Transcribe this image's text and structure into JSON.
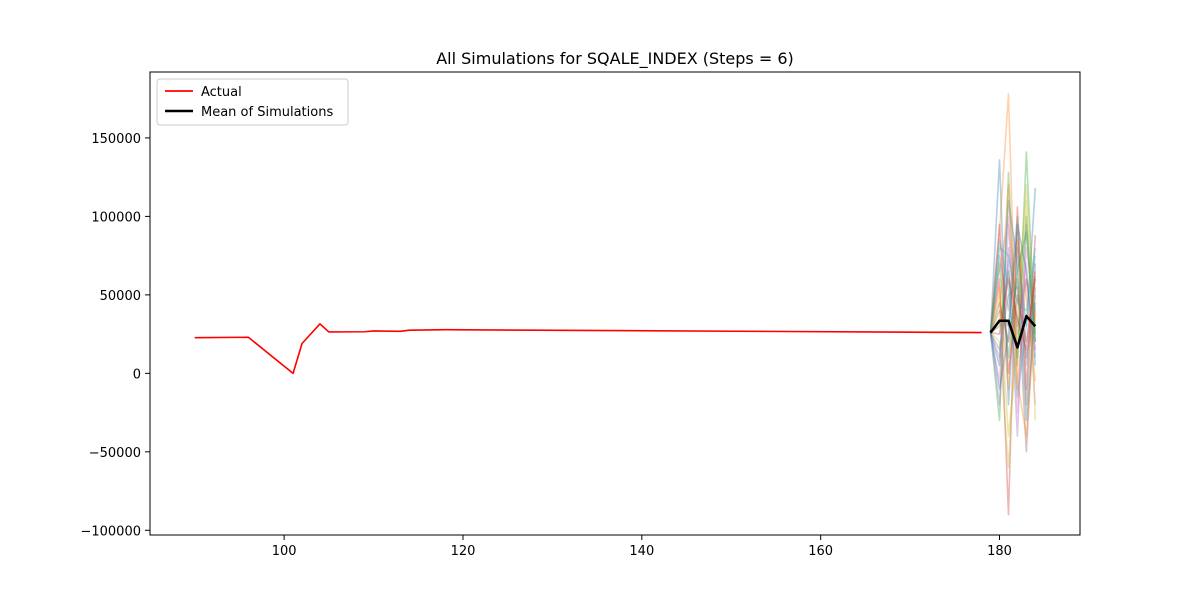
{
  "chart_data": {
    "type": "line",
    "title": "All Simulations for SQALE_INDEX (Steps = 6)",
    "xlabel": "",
    "ylabel": "",
    "xlim": [
      85,
      189
    ],
    "ylim": [
      -103000,
      192000
    ],
    "xticks": [
      100,
      120,
      140,
      160,
      180
    ],
    "yticks": [
      -100000,
      -50000,
      0,
      50000,
      100000,
      150000
    ],
    "xtick_labels": [
      "100",
      "120",
      "140",
      "160",
      "180"
    ],
    "ytick_labels": [
      "−100000",
      "−50000",
      "0",
      "50000",
      "100000",
      "150000"
    ],
    "grid": false,
    "legend_placement": "top-left",
    "legend": [
      {
        "label": "Actual",
        "color": "#ff0000"
      },
      {
        "label": "Mean of Simulations",
        "color": "#000000"
      }
    ],
    "actual": {
      "name": "Actual",
      "color": "#ff0000",
      "x": [
        90,
        96,
        101,
        102,
        104,
        105,
        109,
        110,
        113,
        114,
        118,
        178
      ],
      "y": [
        22700,
        23000,
        0,
        19000,
        31500,
        26400,
        26500,
        27000,
        26800,
        27500,
        27800,
        26000
      ]
    },
    "mean_of_simulations": {
      "name": "Mean of Simulations",
      "color": "#000000",
      "x": [
        179,
        180,
        181,
        182,
        183,
        184
      ],
      "y": [
        26000,
        33500,
        33500,
        16500,
        36500,
        30000
      ]
    },
    "simulations": {
      "x": [
        179,
        180,
        181,
        182,
        183,
        184
      ],
      "colors": [
        "#1f77b4",
        "#ff7f0e",
        "#2ca02c",
        "#d62728",
        "#9467bd",
        "#8c564b",
        "#e377c2",
        "#7f7f7f",
        "#bcbd22",
        "#17becf"
      ],
      "series": [
        {
          "values": [
            26000,
            136000,
            -20000,
            80000,
            30000,
            118000
          ]
        },
        {
          "values": [
            26000,
            90000,
            178000,
            -10000,
            60000,
            40000
          ]
        },
        {
          "values": [
            26000,
            -30000,
            128000,
            5000,
            141000,
            20000
          ]
        },
        {
          "values": [
            26000,
            60000,
            -90000,
            106000,
            -10000,
            88000
          ]
        },
        {
          "values": [
            26000,
            10000,
            72000,
            -40000,
            95000,
            10000
          ]
        },
        {
          "values": [
            26000,
            45000,
            20000,
            60000,
            -50000,
            55000
          ]
        },
        {
          "values": [
            26000,
            -5000,
            95000,
            25000,
            70000,
            -20000
          ]
        },
        {
          "values": [
            26000,
            75000,
            40000,
            100000,
            5000,
            62000
          ]
        },
        {
          "values": [
            26000,
            20000,
            -60000,
            40000,
            120000,
            30000
          ]
        },
        {
          "values": [
            26000,
            85000,
            55000,
            -15000,
            30000,
            75000
          ]
        },
        {
          "values": [
            26000,
            5000,
            110000,
            70000,
            -30000,
            45000
          ]
        },
        {
          "values": [
            26000,
            55000,
            -10000,
            85000,
            50000,
            -5000
          ]
        },
        {
          "values": [
            26000,
            30000,
            65000,
            10000,
            100000,
            25000
          ]
        },
        {
          "values": [
            26000,
            95000,
            0,
            50000,
            20000,
            60000
          ]
        },
        {
          "values": [
            26000,
            -20000,
            80000,
            30000,
            60000,
            15000
          ]
        },
        {
          "values": [
            26000,
            40000,
            30000,
            90000,
            -20000,
            70000
          ]
        },
        {
          "values": [
            26000,
            65000,
            100000,
            -25000,
            80000,
            35000
          ]
        },
        {
          "values": [
            26000,
            15000,
            50000,
            55000,
            10000,
            50000
          ]
        },
        {
          "values": [
            26000,
            50000,
            -40000,
            20000,
            110000,
            -30000
          ]
        },
        {
          "values": [
            26000,
            80000,
            75000,
            45000,
            40000,
            80000
          ]
        },
        {
          "values": [
            26000,
            -10000,
            25000,
            95000,
            65000,
            5000
          ]
        },
        {
          "values": [
            26000,
            35000,
            120000,
            -5000,
            -40000,
            40000
          ]
        },
        {
          "values": [
            26000,
            70000,
            10000,
            65000,
            90000,
            20000
          ]
        },
        {
          "values": [
            26000,
            25000,
            60000,
            35000,
            15000,
            65000
          ]
        }
      ]
    }
  }
}
